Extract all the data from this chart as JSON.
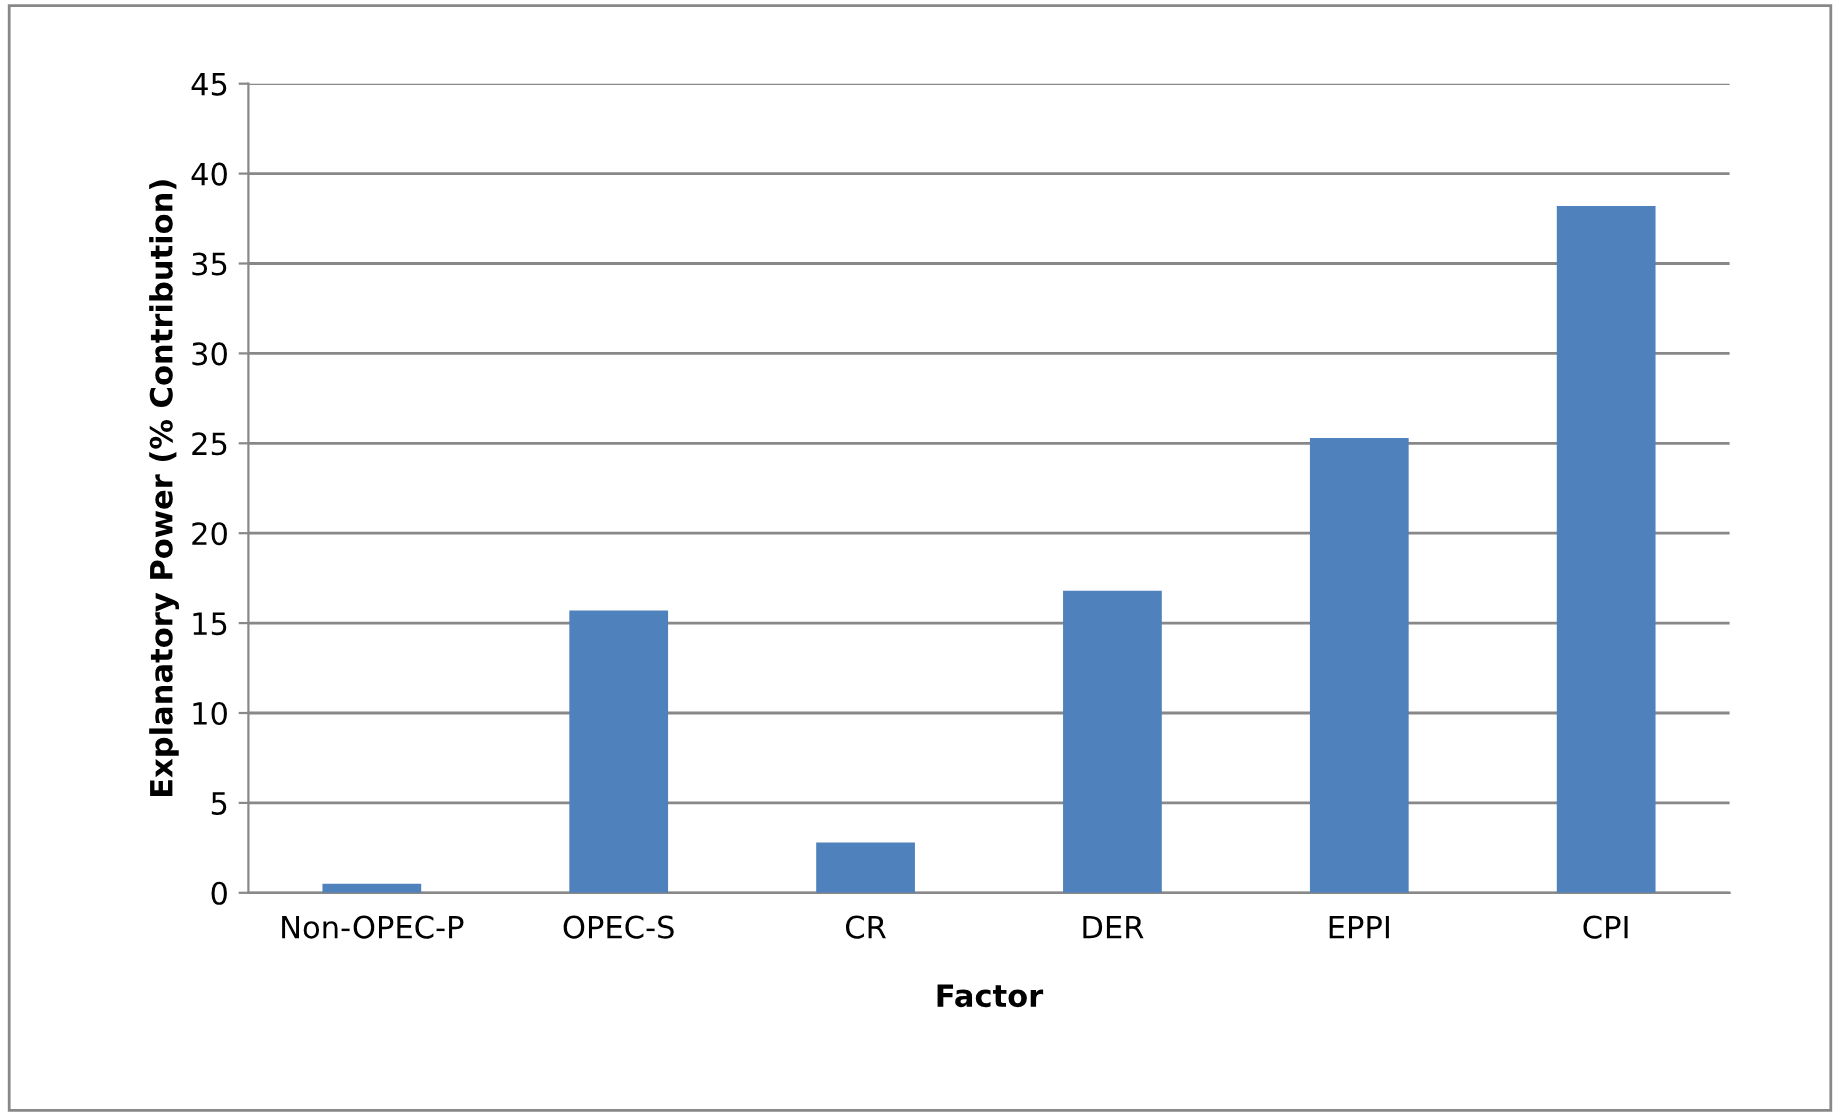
{
  "chart_data": {
    "type": "bar",
    "xlabel": "Factor",
    "ylabel": "Explanatory Power (% Contribution)",
    "categories": [
      "Non-OPEC-P",
      "OPEC-S",
      "CR",
      "DER",
      "EPPI",
      "CPI"
    ],
    "values": [
      0.5,
      15.7,
      2.8,
      16.8,
      25.3,
      38.2
    ],
    "color": "#4f81bd",
    "ylim": [
      0,
      45
    ],
    "yticks": [
      0,
      5,
      10,
      15,
      20,
      25,
      30,
      35,
      40,
      45
    ],
    "grid": "y",
    "legend": false
  }
}
